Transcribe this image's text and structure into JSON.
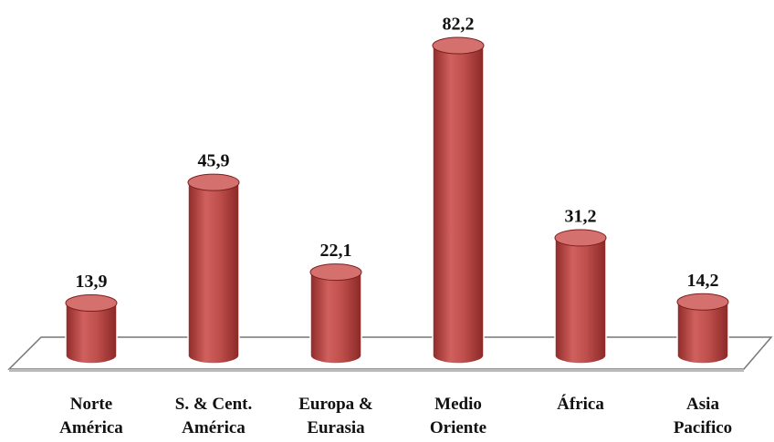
{
  "chart_data": {
    "type": "bar",
    "categories": [
      [
        "Norte",
        "América"
      ],
      [
        "S. & Cent.",
        "América"
      ],
      [
        "Europa &",
        "Eurasia"
      ],
      [
        "Medio",
        "Oriente"
      ],
      [
        "África"
      ],
      [
        "Asia",
        "Pacifico"
      ]
    ],
    "values": [
      13.9,
      45.9,
      22.1,
      82.2,
      31.2,
      14.2
    ],
    "value_labels": [
      "13,9",
      "45,9",
      "22,1",
      "82,2",
      "31,2",
      "14,2"
    ],
    "color": "#c0504d"
  }
}
